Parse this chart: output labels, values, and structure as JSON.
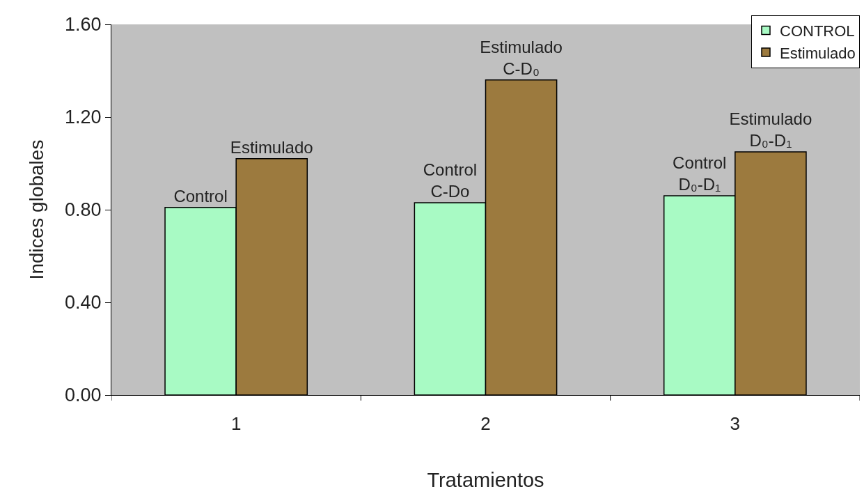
{
  "chart_data": {
    "type": "bar",
    "xlabel": "Tratamientos",
    "ylabel": "Indices globales",
    "categories": [
      "1",
      "2",
      "3"
    ],
    "series": [
      {
        "name": "CONTROL",
        "color": "#a8fac4",
        "values": [
          0.81,
          0.83,
          0.86
        ],
        "value_labels": [
          "Control",
          "Control\nC-Do",
          "Control\nD₀-D₁"
        ]
      },
      {
        "name": "Estimulado",
        "color": "#9c7a3e",
        "values": [
          1.02,
          1.36,
          1.05
        ],
        "value_labels": [
          "Estimulado",
          "Estimulado\nC-D₀",
          "Estimulado\nD₀-D₁"
        ]
      }
    ],
    "ylim": [
      0,
      1.6
    ],
    "yticks": [
      {
        "value": 0,
        "label": "0.00"
      },
      {
        "value": 0.4,
        "label": "0.40"
      },
      {
        "value": 0.8,
        "label": "0.80"
      },
      {
        "value": 1.2,
        "label": "1.20"
      },
      {
        "value": 1.6,
        "label": "1.60"
      }
    ],
    "grid": false,
    "legend": "top right"
  }
}
